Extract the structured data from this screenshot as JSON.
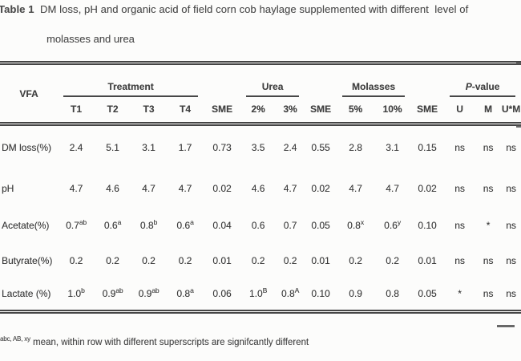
{
  "title": {
    "prefix": "Table 1",
    "line1": "DM loss, pH and organic acid of field corn cob haylage supplemented with different  level of",
    "line2": "molasses and urea"
  },
  "table": {
    "corner_header": "VFA",
    "groups": [
      {
        "label": "Treatment",
        "span": 4,
        "underline": true
      },
      {
        "label": "",
        "span": 1
      },
      {
        "label": "Urea",
        "span": 2,
        "underline": true
      },
      {
        "label": "",
        "span": 1
      },
      {
        "label": "Molasses",
        "span": 2,
        "underline": true
      },
      {
        "label": "",
        "span": 1
      },
      {
        "label": "P-value",
        "span": 3,
        "underline": true,
        "italic_first": true
      }
    ],
    "subheaders": [
      "T1",
      "T2",
      "T3",
      "T4",
      "SME",
      "2%",
      "3%",
      "SME",
      "5%",
      "10%",
      "SME",
      "U",
      "M",
      "U*M"
    ],
    "rows": [
      {
        "label": "DM loss(%)",
        "cells": [
          "2.4",
          "5.1",
          "3.1",
          "1.7",
          "0.73",
          "3.5",
          "2.4",
          "0.55",
          "2.8",
          "3.1",
          "0.15",
          "ns",
          "ns",
          "ns"
        ]
      },
      {
        "label": "pH",
        "cells": [
          "4.7",
          "4.6",
          "4.7",
          "4.7",
          "0.02",
          "4.6",
          "4.7",
          "0.02",
          "4.7",
          "4.7",
          "0.02",
          "ns",
          "ns",
          "ns"
        ]
      },
      {
        "label": "Acetate(%)",
        "cells": [
          "0.7^ab",
          "0.6^a",
          "0.8^b",
          "0.6^a",
          "0.04",
          "0.6",
          "0.7",
          "0.05",
          "0.8^x",
          "0.6^y",
          "0.10",
          "ns",
          "*",
          "ns"
        ]
      },
      {
        "label": "Butyrate(%)",
        "cells": [
          "0.2",
          "0.2",
          "0.2",
          "0.2",
          "0.01",
          "0.2",
          "0.2",
          "0.01",
          "0.2",
          "0.2",
          "0.01",
          "ns",
          "ns",
          "ns"
        ]
      },
      {
        "label": "Lactate (%)",
        "cells": [
          "1.0^b",
          "0.9^ab",
          "0.9^ab",
          "0.8^a",
          "0.06",
          "1.0^B",
          "0.8^A",
          "0.10",
          "0.9",
          "0.8",
          "0.05",
          "*",
          "ns",
          "ns"
        ]
      }
    ]
  },
  "footnote": {
    "sup": "abc, AB, xy",
    "text": "mean, within row with different superscripts are signifcantly different"
  },
  "colors": {
    "text": "#3c3c3c",
    "rule": "#454545",
    "background": "#fcfcfb"
  }
}
